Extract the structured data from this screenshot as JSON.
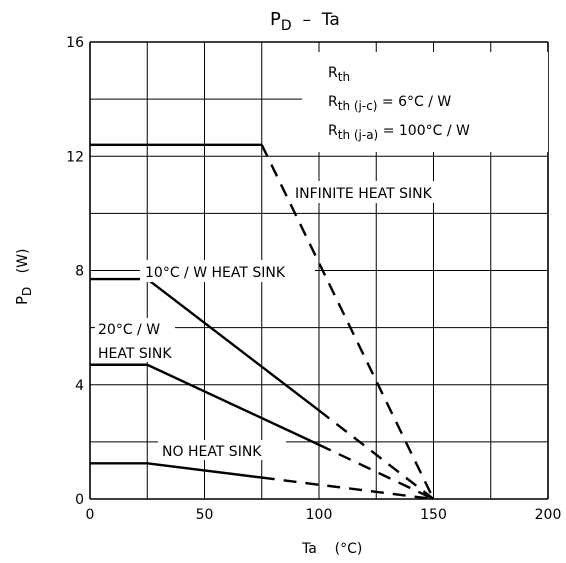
{
  "chart_data": {
    "type": "line",
    "title": {
      "main": "P",
      "sub": "D",
      "rest": "  –  Ta"
    },
    "xlabel": "Ta    (°C)",
    "ylabel": {
      "main": "P",
      "sub": "D",
      "rest": "   (W)"
    },
    "xlim": [
      0,
      200
    ],
    "ylim": [
      0,
      16
    ],
    "x_ticks": [
      0,
      50,
      100,
      150,
      200
    ],
    "y_ticks": [
      0,
      4,
      8,
      12,
      16
    ],
    "x_grid": [
      0,
      25,
      50,
      75,
      100,
      125,
      150,
      175,
      200
    ],
    "y_grid": [
      0,
      2,
      4,
      6,
      8,
      10,
      12,
      14,
      16
    ],
    "grid": true,
    "series": [
      {
        "name": "INFINITE HEAT SINK",
        "points": [
          [
            0,
            12.4
          ],
          [
            75,
            12.4
          ],
          [
            150,
            0
          ]
        ],
        "dashed_from": [
          75,
          12.4
        ]
      },
      {
        "name": "10°C / W HEAT SINK",
        "points": [
          [
            0,
            7.7
          ],
          [
            25,
            7.7
          ],
          [
            150,
            0
          ]
        ],
        "dashed_from": [
          100,
          3.1
        ]
      },
      {
        "name": "20°C / W HEAT SINK",
        "points": [
          [
            0,
            4.7
          ],
          [
            25,
            4.7
          ],
          [
            150,
            0
          ]
        ],
        "dashed_from": [
          100,
          1.9
        ]
      },
      {
        "name": "NO HEAT SINK",
        "points": [
          [
            0,
            1.25
          ],
          [
            25,
            1.25
          ],
          [
            150,
            0
          ]
        ],
        "dashed_from": [
          75,
          0.75
        ]
      }
    ],
    "annotations": {
      "rth_title": {
        "main": "R",
        "sub": "th"
      },
      "rth_jc": {
        "main": "R",
        "sub": "th (j-c)",
        "rest": " = 6°C / W"
      },
      "rth_ja": {
        "main": "R",
        "sub": "th (j-a)",
        "rest": " = 100°C / W"
      },
      "infinite": "INFINITE HEAT SINK",
      "hs10": "10°C / W HEAT SINK",
      "hs20_line1": "20°C / W",
      "hs20_line2": "HEAT SINK",
      "no_hs": "NO HEAT SINK"
    }
  }
}
